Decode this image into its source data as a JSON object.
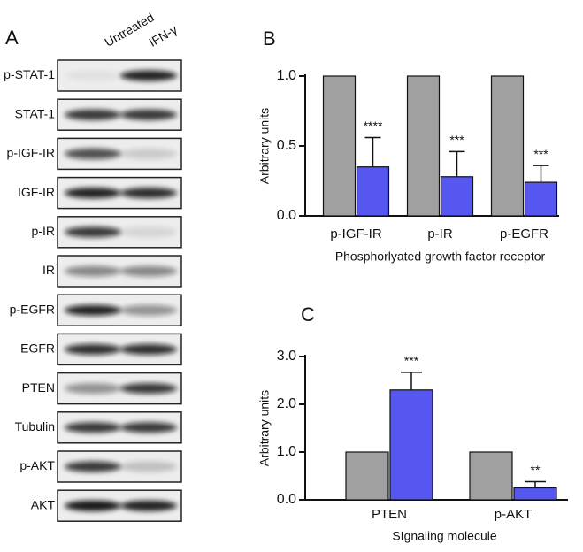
{
  "panel_a": {
    "panel_label": "A",
    "lanes": [
      "Untreated",
      "IFN-γ"
    ],
    "rows": [
      "p-STAT-1",
      "STAT-1",
      "p-IGF-IR",
      "IGF-IR",
      "p-IR",
      "IR",
      "p-EGFR",
      "EGFR",
      "PTEN",
      "Tubulin",
      "p-AKT",
      "AKT"
    ]
  },
  "chart_data": [
    {
      "type": "bar",
      "panel_label": "B",
      "ylabel": "Arbitrary units",
      "xlabel": "Phosphorlyated growth factor receptor",
      "categories": [
        "p-IGF-IR",
        "p-IR",
        "p-EGFR"
      ],
      "series": [
        {
          "color": "#a0a0a0",
          "values": [
            1,
            1,
            1
          ]
        },
        {
          "color": "#5656f0",
          "values": [
            0.35,
            0.28,
            0.24
          ],
          "errors": [
            0.21,
            0.18,
            0.12
          ],
          "annotations": [
            "****",
            "***",
            "***"
          ]
        }
      ],
      "ylim": [
        0,
        1
      ],
      "yticks": [
        {
          "value": 0,
          "label": "0.0"
        },
        {
          "value": 0.5,
          "label": "0.5"
        },
        {
          "value": 1,
          "label": "1.0"
        }
      ]
    },
    {
      "type": "bar",
      "panel_label": "C",
      "ylabel": "Arbitrary units",
      "xlabel": "SIgnaling molecule",
      "categories": [
        "PTEN",
        "p-AKT"
      ],
      "series": [
        {
          "color": "#a0a0a0",
          "values": [
            1,
            1
          ]
        },
        {
          "color": "#5656f0",
          "values": [
            2.3,
            0.25
          ],
          "errors": [
            0.37,
            0.13
          ],
          "annotations": [
            "***",
            "**"
          ]
        }
      ],
      "ylim": [
        0,
        3
      ],
      "yticks": [
        {
          "value": 0,
          "label": "0.0"
        },
        {
          "value": 1,
          "label": "1.0"
        },
        {
          "value": 2,
          "label": "2.0"
        },
        {
          "value": 3,
          "label": "3.0"
        }
      ]
    }
  ]
}
